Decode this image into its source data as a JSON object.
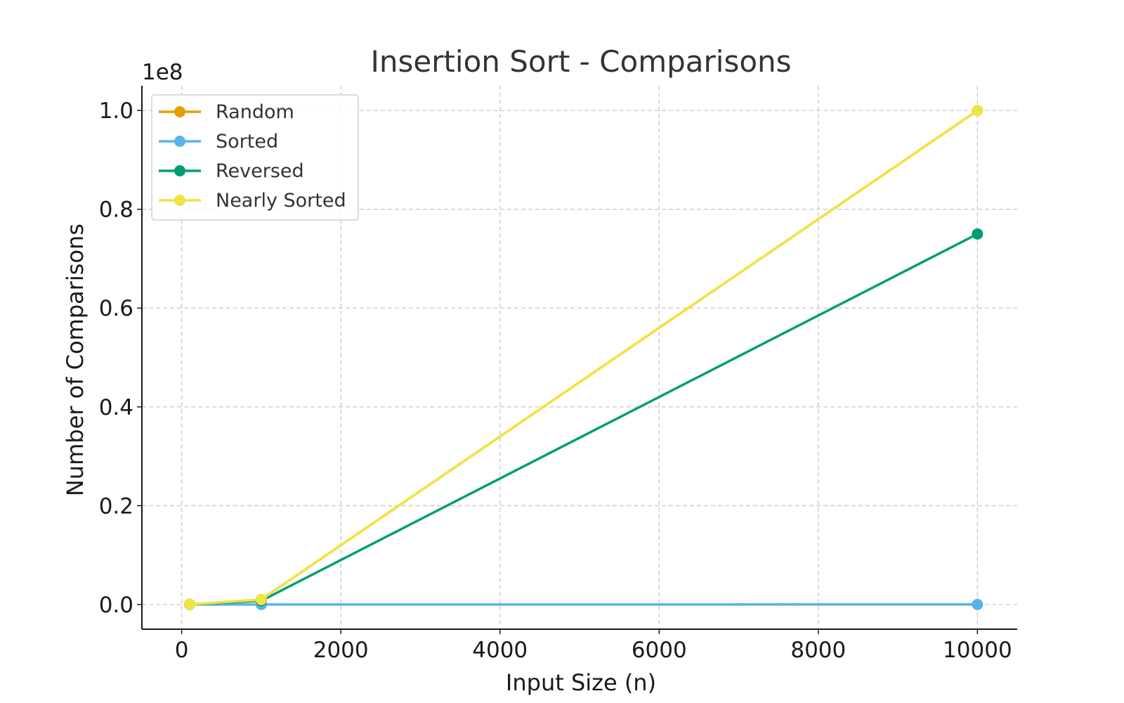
{
  "chart_data": {
    "type": "line",
    "title": "Insertion Sort - Comparisons",
    "xlabel": "Input Size (n)",
    "ylabel": "Number of Comparisons",
    "y_scale_label": "1e8",
    "x": [
      100,
      1000,
      10000
    ],
    "xlim": [
      -500,
      10500
    ],
    "ylim": [
      -5000000,
      105000000
    ],
    "x_ticks": [
      0,
      2000,
      4000,
      6000,
      8000,
      10000
    ],
    "x_tick_labels": [
      "0",
      "2000",
      "4000",
      "6000",
      "8000",
      "10000"
    ],
    "y_ticks": [
      0,
      20000000,
      40000000,
      60000000,
      80000000,
      100000000
    ],
    "y_tick_labels": [
      "0.0",
      "0.2",
      "0.4",
      "0.6",
      "0.8",
      "1.0"
    ],
    "grid": true,
    "legend_position": "top-left",
    "series": [
      {
        "name": "Random",
        "color": "#E69F00",
        "values": [
          9900,
          999000,
          99990000
        ]
      },
      {
        "name": "Sorted",
        "color": "#56B4E9",
        "values": [
          99,
          999,
          9999
        ]
      },
      {
        "name": "Reversed",
        "color": "#009E73",
        "values": [
          7400,
          750000,
          75000000
        ]
      },
      {
        "name": "Nearly Sorted",
        "color": "#F0E442",
        "values": [
          9900,
          999000,
          99990000
        ]
      }
    ]
  }
}
